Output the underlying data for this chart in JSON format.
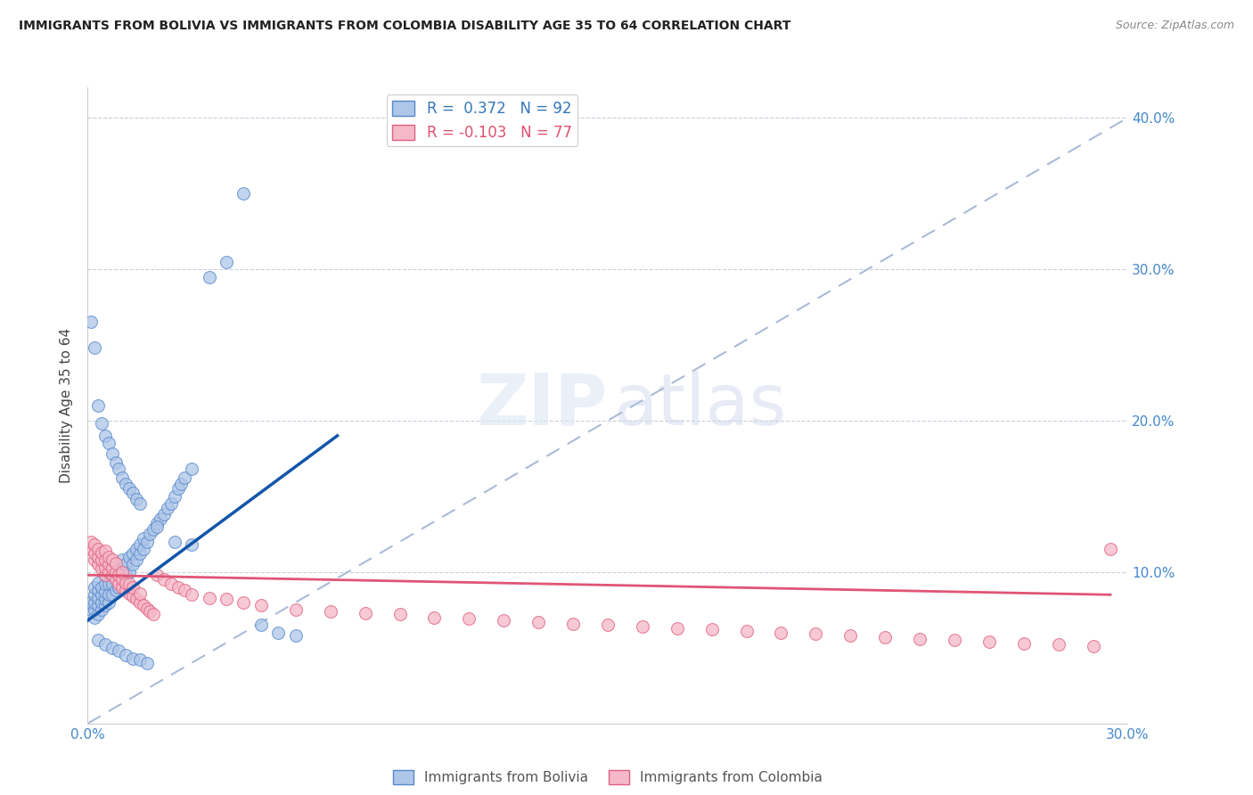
{
  "title": "IMMIGRANTS FROM BOLIVIA VS IMMIGRANTS FROM COLOMBIA DISABILITY AGE 35 TO 64 CORRELATION CHART",
  "source": "Source: ZipAtlas.com",
  "ylabel": "Disability Age 35 to 64",
  "xlim": [
    0.0,
    0.3
  ],
  "ylim": [
    0.0,
    0.42
  ],
  "bolivia_color": "#aec6e8",
  "colombia_color": "#f5b8c8",
  "bolivia_edge": "#5588cc",
  "colombia_edge": "#e06080",
  "bolivia_line_color": "#1155aa",
  "colombia_line_color": "#e05575",
  "diag_line_color": "#aabbd8",
  "R_bolivia": 0.372,
  "N_bolivia": 92,
  "R_colombia": -0.103,
  "N_colombia": 77,
  "bolivia_scatter_x": [
    0.001,
    0.001,
    0.002,
    0.002,
    0.002,
    0.002,
    0.002,
    0.003,
    0.003,
    0.003,
    0.003,
    0.003,
    0.004,
    0.004,
    0.004,
    0.004,
    0.005,
    0.005,
    0.005,
    0.005,
    0.005,
    0.006,
    0.006,
    0.006,
    0.007,
    0.007,
    0.007,
    0.008,
    0.008,
    0.008,
    0.009,
    0.009,
    0.01,
    0.01,
    0.01,
    0.011,
    0.011,
    0.012,
    0.012,
    0.013,
    0.013,
    0.014,
    0.014,
    0.015,
    0.015,
    0.016,
    0.016,
    0.017,
    0.018,
    0.019,
    0.02,
    0.021,
    0.022,
    0.023,
    0.024,
    0.025,
    0.026,
    0.027,
    0.028,
    0.03,
    0.001,
    0.002,
    0.003,
    0.004,
    0.005,
    0.006,
    0.007,
    0.008,
    0.009,
    0.01,
    0.011,
    0.012,
    0.013,
    0.014,
    0.015,
    0.02,
    0.025,
    0.03,
    0.035,
    0.04,
    0.045,
    0.05,
    0.055,
    0.06,
    0.003,
    0.005,
    0.007,
    0.009,
    0.011,
    0.013,
    0.015,
    0.017
  ],
  "bolivia_scatter_y": [
    0.075,
    0.08,
    0.07,
    0.075,
    0.08,
    0.085,
    0.09,
    0.072,
    0.078,
    0.083,
    0.088,
    0.093,
    0.075,
    0.08,
    0.085,
    0.09,
    0.078,
    0.082,
    0.087,
    0.092,
    0.098,
    0.08,
    0.085,
    0.092,
    0.085,
    0.092,
    0.098,
    0.088,
    0.095,
    0.102,
    0.09,
    0.098,
    0.092,
    0.1,
    0.108,
    0.098,
    0.105,
    0.1,
    0.11,
    0.105,
    0.112,
    0.108,
    0.115,
    0.112,
    0.118,
    0.115,
    0.122,
    0.12,
    0.125,
    0.128,
    0.132,
    0.135,
    0.138,
    0.142,
    0.145,
    0.15,
    0.155,
    0.158,
    0.162,
    0.168,
    0.265,
    0.248,
    0.21,
    0.198,
    0.19,
    0.185,
    0.178,
    0.172,
    0.168,
    0.162,
    0.158,
    0.155,
    0.152,
    0.148,
    0.145,
    0.13,
    0.12,
    0.118,
    0.295,
    0.305,
    0.35,
    0.065,
    0.06,
    0.058,
    0.055,
    0.052,
    0.05,
    0.048,
    0.045,
    0.043,
    0.042,
    0.04
  ],
  "colombia_scatter_x": [
    0.001,
    0.001,
    0.002,
    0.002,
    0.002,
    0.003,
    0.003,
    0.003,
    0.004,
    0.004,
    0.004,
    0.005,
    0.005,
    0.005,
    0.005,
    0.006,
    0.006,
    0.006,
    0.007,
    0.007,
    0.007,
    0.008,
    0.008,
    0.008,
    0.009,
    0.009,
    0.01,
    0.01,
    0.01,
    0.011,
    0.011,
    0.012,
    0.012,
    0.013,
    0.013,
    0.014,
    0.015,
    0.015,
    0.016,
    0.017,
    0.018,
    0.019,
    0.02,
    0.022,
    0.024,
    0.026,
    0.028,
    0.03,
    0.035,
    0.04,
    0.045,
    0.05,
    0.06,
    0.07,
    0.08,
    0.09,
    0.1,
    0.11,
    0.12,
    0.13,
    0.14,
    0.15,
    0.16,
    0.17,
    0.18,
    0.19,
    0.2,
    0.21,
    0.22,
    0.23,
    0.24,
    0.25,
    0.26,
    0.27,
    0.28,
    0.29,
    0.295
  ],
  "colombia_scatter_y": [
    0.115,
    0.12,
    0.108,
    0.112,
    0.118,
    0.105,
    0.11,
    0.115,
    0.102,
    0.108,
    0.113,
    0.098,
    0.103,
    0.108,
    0.114,
    0.1,
    0.105,
    0.11,
    0.098,
    0.103,
    0.108,
    0.095,
    0.1,
    0.106,
    0.092,
    0.098,
    0.09,
    0.095,
    0.1,
    0.088,
    0.093,
    0.086,
    0.092,
    0.084,
    0.09,
    0.082,
    0.08,
    0.086,
    0.078,
    0.076,
    0.074,
    0.072,
    0.098,
    0.095,
    0.092,
    0.09,
    0.088,
    0.085,
    0.083,
    0.082,
    0.08,
    0.078,
    0.075,
    0.074,
    0.073,
    0.072,
    0.07,
    0.069,
    0.068,
    0.067,
    0.066,
    0.065,
    0.064,
    0.063,
    0.062,
    0.061,
    0.06,
    0.059,
    0.058,
    0.057,
    0.056,
    0.055,
    0.054,
    0.053,
    0.052,
    0.051,
    0.115
  ],
  "bolivia_line_x": [
    0.0,
    0.072
  ],
  "bolivia_line_y": [
    0.068,
    0.19
  ],
  "colombia_line_x": [
    0.0,
    0.295
  ],
  "colombia_line_y": [
    0.098,
    0.085
  ]
}
